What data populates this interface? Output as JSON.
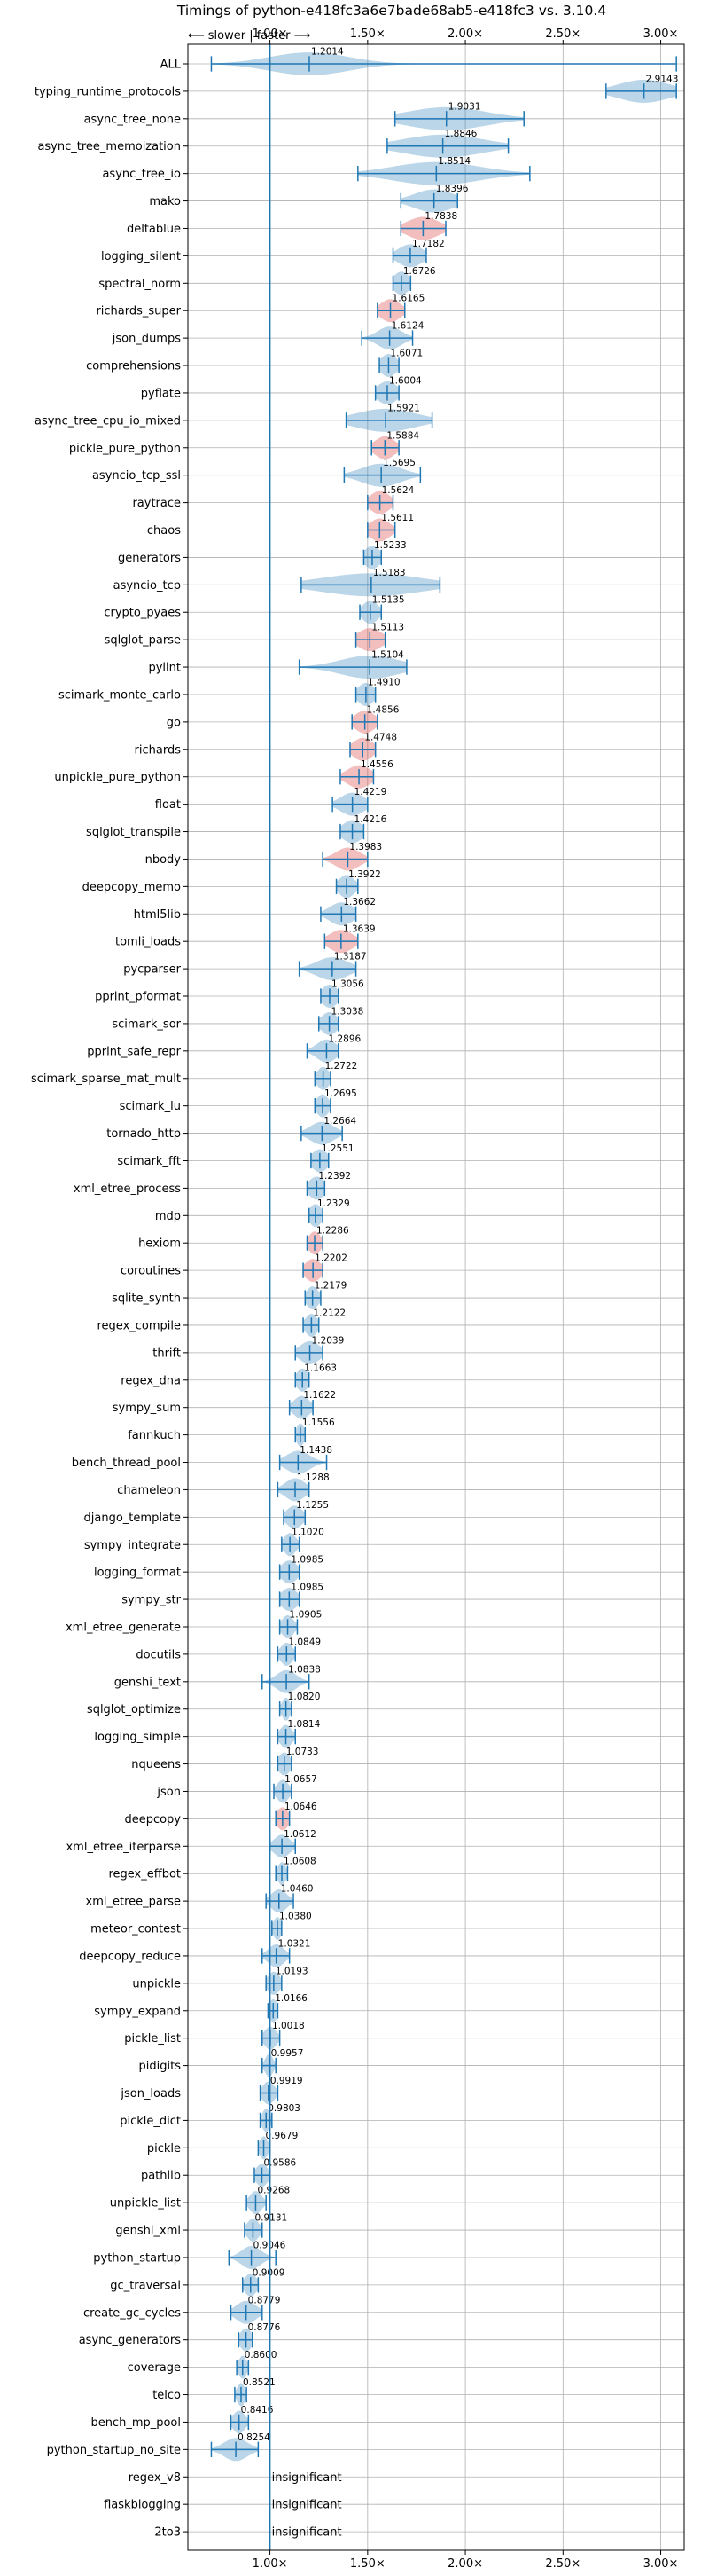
{
  "chart_data": {
    "type": "violin",
    "title": "Timings of python-e418fc3a6e7bade68ab5-e418fc3 vs. 3.10.4",
    "direction_label": "⟵ slower | faster ⟶",
    "x_ticks": [
      {
        "value": 1.0,
        "label": "1.00×"
      },
      {
        "value": 1.5,
        "label": "1.50×"
      },
      {
        "value": 2.0,
        "label": "2.00×"
      },
      {
        "value": 2.5,
        "label": "2.50×"
      },
      {
        "value": 3.0,
        "label": "3.00×"
      }
    ],
    "xlim": [
      0.58,
      3.12
    ],
    "reference_line": 1.0,
    "grid": true,
    "insignificant_label": "insignificant",
    "colors": {
      "normal": "#1f77b4",
      "highlight": "#d62728",
      "grid": "#b0b0b0",
      "axis": "#000000"
    },
    "benchmarks": [
      {
        "name": "ALL",
        "value": 1.2014,
        "min": 0.7,
        "max": 3.08,
        "spread": 0.2,
        "highlight": false
      },
      {
        "name": "typing_runtime_protocols",
        "value": 2.9143,
        "min": 2.72,
        "max": 3.08,
        "spread": 0.13,
        "highlight": false
      },
      {
        "name": "async_tree_none",
        "value": 1.9031,
        "min": 1.64,
        "max": 2.3,
        "spread": 0.2,
        "highlight": false
      },
      {
        "name": "async_tree_memoization",
        "value": 1.8846,
        "min": 1.6,
        "max": 2.22,
        "spread": 0.2,
        "highlight": false
      },
      {
        "name": "async_tree_io",
        "value": 1.8514,
        "min": 1.45,
        "max": 2.33,
        "spread": 0.22,
        "highlight": false
      },
      {
        "name": "mako",
        "value": 1.8396,
        "min": 1.67,
        "max": 1.96,
        "spread": 0.1,
        "highlight": false
      },
      {
        "name": "deltablue",
        "value": 1.7838,
        "min": 1.67,
        "max": 1.9,
        "spread": 0.08,
        "highlight": true
      },
      {
        "name": "logging_silent",
        "value": 1.7182,
        "min": 1.63,
        "max": 1.8,
        "spread": 0.06,
        "highlight": false
      },
      {
        "name": "spectral_norm",
        "value": 1.6726,
        "min": 1.63,
        "max": 1.72,
        "spread": 0.04,
        "highlight": false
      },
      {
        "name": "richards_super",
        "value": 1.6165,
        "min": 1.55,
        "max": 1.69,
        "spread": 0.05,
        "highlight": true
      },
      {
        "name": "json_dumps",
        "value": 1.6124,
        "min": 1.47,
        "max": 1.73,
        "spread": 0.06,
        "highlight": false
      },
      {
        "name": "comprehensions",
        "value": 1.6071,
        "min": 1.56,
        "max": 1.66,
        "spread": 0.04,
        "highlight": false
      },
      {
        "name": "pyflate",
        "value": 1.6004,
        "min": 1.54,
        "max": 1.66,
        "spread": 0.05,
        "highlight": false
      },
      {
        "name": "async_tree_cpu_io_mixed",
        "value": 1.5921,
        "min": 1.39,
        "max": 1.83,
        "spread": 0.15,
        "highlight": false
      },
      {
        "name": "pickle_pure_python",
        "value": 1.5884,
        "min": 1.52,
        "max": 1.66,
        "spread": 0.05,
        "highlight": true
      },
      {
        "name": "asyncio_tcp_ssl",
        "value": 1.5695,
        "min": 1.38,
        "max": 1.77,
        "spread": 0.1,
        "highlight": false
      },
      {
        "name": "raytrace",
        "value": 1.5624,
        "min": 1.5,
        "max": 1.63,
        "spread": 0.05,
        "highlight": true
      },
      {
        "name": "chaos",
        "value": 1.5611,
        "min": 1.5,
        "max": 1.64,
        "spread": 0.05,
        "highlight": true
      },
      {
        "name": "generators",
        "value": 1.5233,
        "min": 1.48,
        "max": 1.57,
        "spread": 0.04,
        "highlight": false
      },
      {
        "name": "asyncio_tcp",
        "value": 1.5183,
        "min": 1.16,
        "max": 1.87,
        "spread": 0.25,
        "highlight": false
      },
      {
        "name": "crypto_pyaes",
        "value": 1.5135,
        "min": 1.46,
        "max": 1.57,
        "spread": 0.04,
        "highlight": false
      },
      {
        "name": "sqlglot_parse",
        "value": 1.5113,
        "min": 1.44,
        "max": 1.59,
        "spread": 0.06,
        "highlight": true
      },
      {
        "name": "pylint",
        "value": 1.5104,
        "min": 1.15,
        "max": 1.7,
        "spread": 0.15,
        "highlight": false
      },
      {
        "name": "scimark_monte_carlo",
        "value": 1.491,
        "min": 1.44,
        "max": 1.54,
        "spread": 0.04,
        "highlight": false
      },
      {
        "name": "go",
        "value": 1.4856,
        "min": 1.42,
        "max": 1.55,
        "spread": 0.05,
        "highlight": true
      },
      {
        "name": "richards",
        "value": 1.4748,
        "min": 1.41,
        "max": 1.54,
        "spread": 0.05,
        "highlight": true
      },
      {
        "name": "unpickle_pure_python",
        "value": 1.4556,
        "min": 1.36,
        "max": 1.53,
        "spread": 0.06,
        "highlight": true
      },
      {
        "name": "float",
        "value": 1.4219,
        "min": 1.32,
        "max": 1.5,
        "spread": 0.06,
        "highlight": false
      },
      {
        "name": "sqlglot_transpile",
        "value": 1.4216,
        "min": 1.36,
        "max": 1.48,
        "spread": 0.05,
        "highlight": false
      },
      {
        "name": "nbody",
        "value": 1.3983,
        "min": 1.27,
        "max": 1.5,
        "spread": 0.06,
        "highlight": true
      },
      {
        "name": "deepcopy_memo",
        "value": 1.3922,
        "min": 1.34,
        "max": 1.45,
        "spread": 0.04,
        "highlight": false
      },
      {
        "name": "html5lib",
        "value": 1.3662,
        "min": 1.26,
        "max": 1.44,
        "spread": 0.06,
        "highlight": false
      },
      {
        "name": "tomli_loads",
        "value": 1.3639,
        "min": 1.28,
        "max": 1.45,
        "spread": 0.06,
        "highlight": true
      },
      {
        "name": "pycparser",
        "value": 1.3187,
        "min": 1.15,
        "max": 1.44,
        "spread": 0.08,
        "highlight": false
      },
      {
        "name": "pprint_pformat",
        "value": 1.3056,
        "min": 1.26,
        "max": 1.35,
        "spread": 0.04,
        "highlight": false
      },
      {
        "name": "scimark_sor",
        "value": 1.3038,
        "min": 1.25,
        "max": 1.35,
        "spread": 0.04,
        "highlight": false
      },
      {
        "name": "pprint_safe_repr",
        "value": 1.2896,
        "min": 1.19,
        "max": 1.35,
        "spread": 0.05,
        "highlight": false
      },
      {
        "name": "scimark_sparse_mat_mult",
        "value": 1.2722,
        "min": 1.23,
        "max": 1.31,
        "spread": 0.03,
        "highlight": false
      },
      {
        "name": "scimark_lu",
        "value": 1.2695,
        "min": 1.23,
        "max": 1.31,
        "spread": 0.03,
        "highlight": false
      },
      {
        "name": "tornado_http",
        "value": 1.2664,
        "min": 1.16,
        "max": 1.37,
        "spread": 0.06,
        "highlight": false
      },
      {
        "name": "scimark_fft",
        "value": 1.2551,
        "min": 1.21,
        "max": 1.3,
        "spread": 0.04,
        "highlight": false
      },
      {
        "name": "xml_etree_process",
        "value": 1.2392,
        "min": 1.19,
        "max": 1.28,
        "spread": 0.04,
        "highlight": false
      },
      {
        "name": "mdp",
        "value": 1.2329,
        "min": 1.2,
        "max": 1.27,
        "spread": 0.03,
        "highlight": false
      },
      {
        "name": "hexiom",
        "value": 1.2286,
        "min": 1.19,
        "max": 1.27,
        "spread": 0.03,
        "highlight": true
      },
      {
        "name": "coroutines",
        "value": 1.2202,
        "min": 1.17,
        "max": 1.27,
        "spread": 0.04,
        "highlight": true
      },
      {
        "name": "sqlite_synth",
        "value": 1.2179,
        "min": 1.18,
        "max": 1.26,
        "spread": 0.03,
        "highlight": false
      },
      {
        "name": "regex_compile",
        "value": 1.2122,
        "min": 1.17,
        "max": 1.25,
        "spread": 0.03,
        "highlight": false
      },
      {
        "name": "thrift",
        "value": 1.2039,
        "min": 1.13,
        "max": 1.27,
        "spread": 0.05,
        "highlight": false
      },
      {
        "name": "regex_dna",
        "value": 1.1663,
        "min": 1.13,
        "max": 1.2,
        "spread": 0.03,
        "highlight": false
      },
      {
        "name": "sympy_sum",
        "value": 1.1622,
        "min": 1.1,
        "max": 1.22,
        "spread": 0.04,
        "highlight": false
      },
      {
        "name": "fannkuch",
        "value": 1.1556,
        "min": 1.13,
        "max": 1.18,
        "spread": 0.02,
        "highlight": false
      },
      {
        "name": "bench_thread_pool",
        "value": 1.1438,
        "min": 1.05,
        "max": 1.29,
        "spread": 0.06,
        "highlight": false
      },
      {
        "name": "chameleon",
        "value": 1.1288,
        "min": 1.04,
        "max": 1.2,
        "spread": 0.05,
        "highlight": false
      },
      {
        "name": "django_template",
        "value": 1.1255,
        "min": 1.07,
        "max": 1.18,
        "spread": 0.04,
        "highlight": false
      },
      {
        "name": "sympy_integrate",
        "value": 1.102,
        "min": 1.06,
        "max": 1.15,
        "spread": 0.03,
        "highlight": false
      },
      {
        "name": "logging_format",
        "value": 1.0985,
        "min": 1.05,
        "max": 1.15,
        "spread": 0.04,
        "highlight": false
      },
      {
        "name": "sympy_str",
        "value": 1.0985,
        "min": 1.05,
        "max": 1.15,
        "spread": 0.04,
        "highlight": false
      },
      {
        "name": "xml_etree_generate",
        "value": 1.0905,
        "min": 1.05,
        "max": 1.14,
        "spread": 0.03,
        "highlight": false
      },
      {
        "name": "docutils",
        "value": 1.0849,
        "min": 1.04,
        "max": 1.13,
        "spread": 0.03,
        "highlight": false
      },
      {
        "name": "genshi_text",
        "value": 1.0838,
        "min": 0.96,
        "max": 1.2,
        "spread": 0.05,
        "highlight": false
      },
      {
        "name": "sqlglot_optimize",
        "value": 1.082,
        "min": 1.05,
        "max": 1.11,
        "spread": 0.02,
        "highlight": false
      },
      {
        "name": "logging_simple",
        "value": 1.0814,
        "min": 1.04,
        "max": 1.13,
        "spread": 0.03,
        "highlight": false
      },
      {
        "name": "nqueens",
        "value": 1.0733,
        "min": 1.04,
        "max": 1.11,
        "spread": 0.03,
        "highlight": false
      },
      {
        "name": "json",
        "value": 1.0657,
        "min": 1.02,
        "max": 1.11,
        "spread": 0.03,
        "highlight": false
      },
      {
        "name": "deepcopy",
        "value": 1.0646,
        "min": 1.03,
        "max": 1.1,
        "spread": 0.03,
        "highlight": true
      },
      {
        "name": "xml_etree_iterparse",
        "value": 1.0612,
        "min": 1.0,
        "max": 1.13,
        "spread": 0.04,
        "highlight": false
      },
      {
        "name": "regex_effbot",
        "value": 1.0608,
        "min": 1.03,
        "max": 1.09,
        "spread": 0.02,
        "highlight": false
      },
      {
        "name": "xml_etree_parse",
        "value": 1.046,
        "min": 0.98,
        "max": 1.12,
        "spread": 0.04,
        "highlight": false
      },
      {
        "name": "meteor_contest",
        "value": 1.038,
        "min": 1.01,
        "max": 1.06,
        "spread": 0.02,
        "highlight": false
      },
      {
        "name": "deepcopy_reduce",
        "value": 1.0321,
        "min": 0.96,
        "max": 1.1,
        "spread": 0.04,
        "highlight": false
      },
      {
        "name": "unpickle",
        "value": 1.0193,
        "min": 0.98,
        "max": 1.06,
        "spread": 0.03,
        "highlight": false
      },
      {
        "name": "sympy_expand",
        "value": 1.0166,
        "min": 0.99,
        "max": 1.04,
        "spread": 0.02,
        "highlight": false
      },
      {
        "name": "pickle_list",
        "value": 1.0018,
        "min": 0.96,
        "max": 1.05,
        "spread": 0.03,
        "highlight": false
      },
      {
        "name": "pidigits",
        "value": 0.9957,
        "min": 0.96,
        "max": 1.03,
        "spread": 0.02,
        "highlight": false
      },
      {
        "name": "json_loads",
        "value": 0.9919,
        "min": 0.95,
        "max": 1.04,
        "spread": 0.03,
        "highlight": false
      },
      {
        "name": "pickle_dict",
        "value": 0.9803,
        "min": 0.95,
        "max": 1.01,
        "spread": 0.02,
        "highlight": false
      },
      {
        "name": "pickle",
        "value": 0.9679,
        "min": 0.94,
        "max": 1.0,
        "spread": 0.02,
        "highlight": false
      },
      {
        "name": "pathlib",
        "value": 0.9586,
        "min": 0.92,
        "max": 1.0,
        "spread": 0.03,
        "highlight": false
      },
      {
        "name": "unpickle_list",
        "value": 0.9268,
        "min": 0.88,
        "max": 0.98,
        "spread": 0.03,
        "highlight": false
      },
      {
        "name": "genshi_xml",
        "value": 0.9131,
        "min": 0.87,
        "max": 0.96,
        "spread": 0.03,
        "highlight": false
      },
      {
        "name": "python_startup",
        "value": 0.9046,
        "min": 0.79,
        "max": 1.03,
        "spread": 0.05,
        "highlight": false
      },
      {
        "name": "gc_traversal",
        "value": 0.9009,
        "min": 0.86,
        "max": 0.94,
        "spread": 0.03,
        "highlight": false
      },
      {
        "name": "create_gc_cycles",
        "value": 0.8779,
        "min": 0.8,
        "max": 0.96,
        "spread": 0.05,
        "highlight": false
      },
      {
        "name": "async_generators",
        "value": 0.8776,
        "min": 0.84,
        "max": 0.91,
        "spread": 0.03,
        "highlight": false
      },
      {
        "name": "coverage",
        "value": 0.86,
        "min": 0.83,
        "max": 0.89,
        "spread": 0.02,
        "highlight": false
      },
      {
        "name": "telco",
        "value": 0.8521,
        "min": 0.82,
        "max": 0.88,
        "spread": 0.02,
        "highlight": false
      },
      {
        "name": "bench_mp_pool",
        "value": 0.8416,
        "min": 0.8,
        "max": 0.89,
        "spread": 0.03,
        "highlight": false
      },
      {
        "name": "python_startup_no_site",
        "value": 0.8254,
        "min": 0.7,
        "max": 0.94,
        "spread": 0.06,
        "highlight": false
      },
      {
        "name": "regex_v8",
        "value": null,
        "insignificant": true
      },
      {
        "name": "flaskblogging",
        "value": null,
        "insignificant": true
      },
      {
        "name": "2to3",
        "value": null,
        "insignificant": true
      }
    ]
  }
}
